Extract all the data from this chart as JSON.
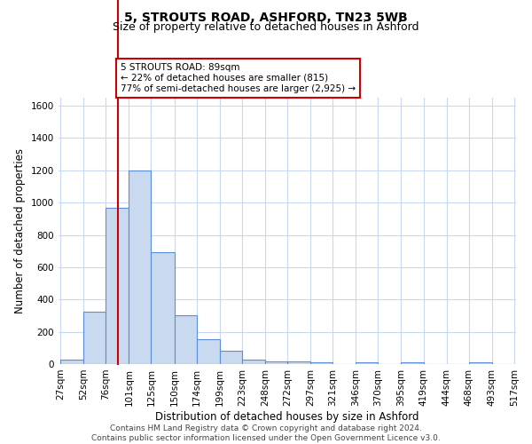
{
  "title": "5, STROUTS ROAD, ASHFORD, TN23 5WB",
  "subtitle": "Size of property relative to detached houses in Ashford",
  "xlabel": "Distribution of detached houses by size in Ashford",
  "ylabel": "Number of detached properties",
  "bin_edges": [
    27,
    52,
    76,
    101,
    125,
    150,
    174,
    199,
    223,
    248,
    272,
    297,
    321,
    346,
    370,
    395,
    419,
    444,
    468,
    493,
    517
  ],
  "bar_heights": [
    25,
    325,
    970,
    1200,
    695,
    305,
    155,
    80,
    25,
    18,
    15,
    12,
    0,
    12,
    0,
    10,
    0,
    0,
    10,
    0
  ],
  "bar_color": "#c9d9f0",
  "bar_edge_color": "#5b8dd9",
  "grid_color": "#c8d8f0",
  "red_line_x": 89,
  "red_line_color": "#cc0000",
  "annotation_text": "5 STROUTS ROAD: 89sqm\n← 22% of detached houses are smaller (815)\n77% of semi-detached houses are larger (2,925) →",
  "annotation_box_color": "#ffffff",
  "annotation_box_edge_color": "#cc0000",
  "ylim": [
    0,
    1650
  ],
  "yticks": [
    0,
    200,
    400,
    600,
    800,
    1000,
    1200,
    1400,
    1600
  ],
  "footer_text": "Contains HM Land Registry data © Crown copyright and database right 2024.\nContains public sector information licensed under the Open Government Licence v3.0.",
  "title_fontsize": 10,
  "subtitle_fontsize": 9,
  "xlabel_fontsize": 8.5,
  "ylabel_fontsize": 8.5,
  "tick_fontsize": 7.5,
  "annotation_fontsize": 7.5,
  "footer_fontsize": 6.5
}
